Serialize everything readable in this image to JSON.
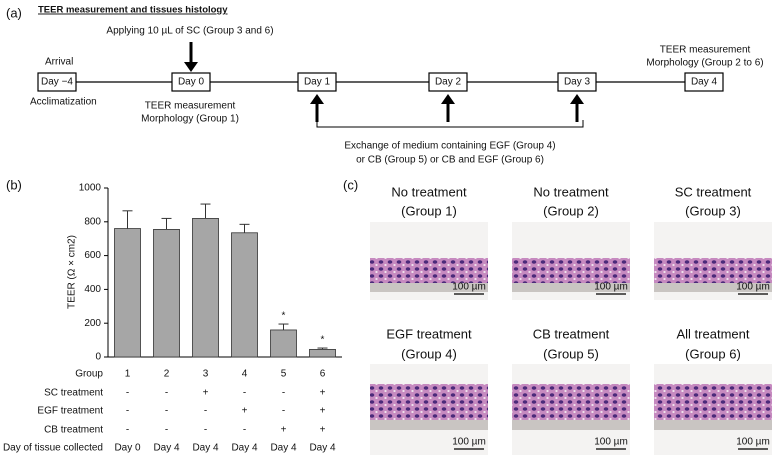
{
  "panel_a": {
    "label": "(a)",
    "title": "TEER measurement and tissues histology",
    "days": [
      "Day −4",
      "Day 0",
      "Day 1",
      "Day 2",
      "Day 3",
      "Day 4"
    ],
    "arrival": "Arrival",
    "acclimatization": "Acclimatization",
    "applying": "Applying 10 µL of SC (Group 3 and 6)",
    "day0_note": [
      "TEER measurement",
      "Morphology (Group 1)"
    ],
    "day4_note": [
      "TEER measurement",
      "Morphology (Group 2 to 6)"
    ],
    "exchange": [
      "Exchange of medium containing EGF (Group 4)",
      "or CB (Group 5) or CB and EGF (Group 6)"
    ]
  },
  "chart_data": {
    "type": "bar",
    "label": "(b)",
    "ylabel": "TEER (Ω × cm2)",
    "category_label": "Group",
    "categories": [
      "1",
      "2",
      "3",
      "4",
      "5",
      "6"
    ],
    "values": [
      760,
      755,
      820,
      735,
      160,
      45
    ],
    "errors": [
      105,
      65,
      85,
      50,
      35,
      8
    ],
    "significance": [
      null,
      null,
      null,
      null,
      "*",
      "*"
    ],
    "color": "#a6a6a6",
    "ylim": [
      0,
      1000
    ],
    "yticks": [
      0,
      200,
      400,
      600,
      800,
      1000
    ],
    "table_rows": [
      {
        "label": "SC treatment",
        "cells": [
          "-",
          "-",
          "+",
          "-",
          "-",
          "+"
        ]
      },
      {
        "label": "EGF treatment",
        "cells": [
          "-",
          "-",
          "-",
          "+",
          "-",
          "+"
        ]
      },
      {
        "label": "CB treatment",
        "cells": [
          "-",
          "-",
          "-",
          "-",
          "+",
          "+"
        ]
      },
      {
        "label": "Day of tissue collected",
        "cells": [
          "Day 0",
          "Day 4",
          "Day 4",
          "Day 4",
          "Day 4",
          "Day 4"
        ]
      }
    ]
  },
  "panel_c": {
    "label": "(c)",
    "images": [
      {
        "title": "No treatment",
        "group": "(Group 1)",
        "scale": "100 µm"
      },
      {
        "title": "No treatment",
        "group": "(Group 2)",
        "scale": "100 µm"
      },
      {
        "title": "SC treatment",
        "group": "(Group 3)",
        "scale": "100 µm"
      },
      {
        "title": "EGF treatment",
        "group": "(Group 4)",
        "scale": "100 µm"
      },
      {
        "title": "CB treatment",
        "group": "(Group 5)",
        "scale": "100 µm"
      },
      {
        "title": "All treatment",
        "group": "(Group 6)",
        "scale": "100 µm"
      }
    ]
  }
}
